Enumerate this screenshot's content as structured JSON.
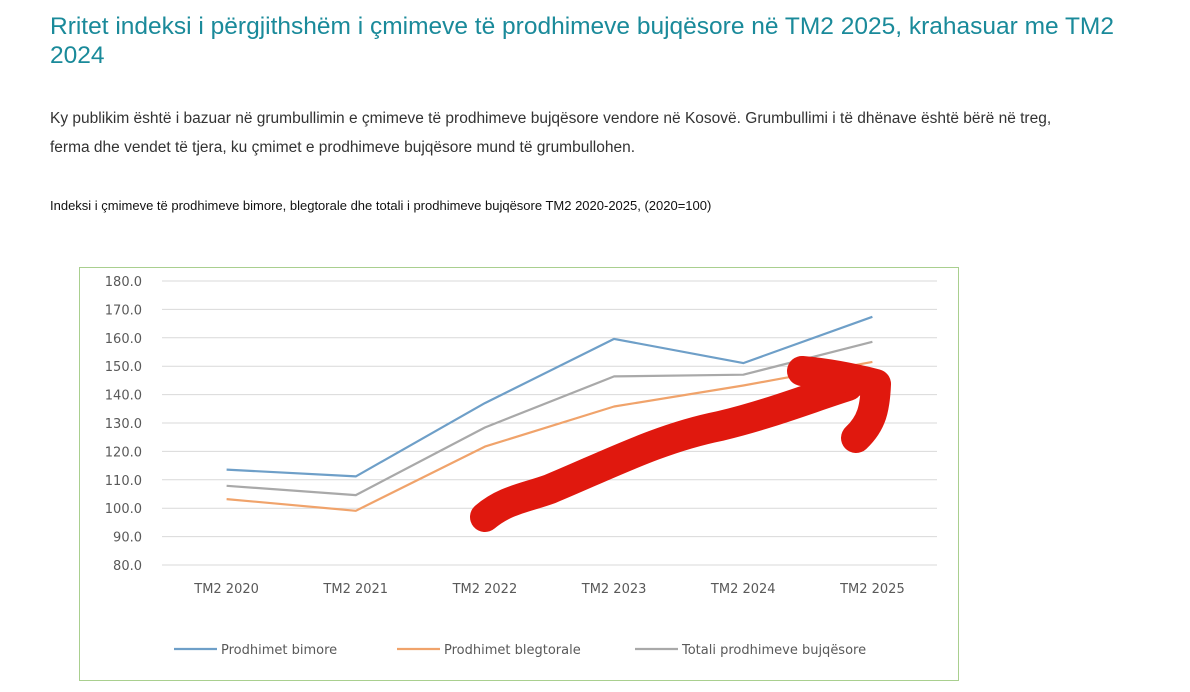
{
  "page": {
    "title": "Rritet indeksi i përgjithshëm i çmimeve të prodhimeve bujqësore në TM2 2025, krahasuar me TM2 2024",
    "intro_line1": "Ky publikim është i bazuar në grumbullimin e çmimeve të prodhimeve bujqësore vendore në Kosovë. Grumbullimi i të dhënave është bërë në treg,",
    "intro_line2": "ferma dhe vendet të tjera, ku çmimet e prodhimeve bujqësore mund të grumbullohen.",
    "chart_caption": "Indeksi i çmimeve të prodhimeve bimore, blegtorale dhe totali i prodhimeve bujqësore TM2 2020-2025, (2020=100)"
  },
  "chart_data": {
    "type": "line",
    "title": "",
    "xlabel": "",
    "ylabel": "",
    "categories": [
      "TM2 2020",
      "TM2 2021",
      "TM2  2022",
      "TM2 2023",
      "TM2 2024",
      "TM2 2025"
    ],
    "ylim": [
      80,
      180
    ],
    "y_ticks": [
      "180.0",
      "170.0",
      "160.0",
      "150.0",
      "140.0",
      "130.0",
      "120.0",
      "110.0",
      "100.0",
      "90.0",
      "80.0"
    ],
    "grid": true,
    "legend_position": "bottom",
    "series": [
      {
        "name": "Prodhimet bimore",
        "color": "#6e9fc8",
        "values": [
          113.6,
          111.2,
          137.0,
          159.6,
          151.1,
          167.4
        ]
      },
      {
        "name": "Prodhimet blegtorale",
        "color": "#f0a36b",
        "values": [
          103.2,
          99.1,
          121.7,
          135.8,
          143.2,
          151.5
        ]
      },
      {
        "name": "Totali prodhimeve bujqësore",
        "color": "#a9a9a9",
        "values": [
          107.9,
          104.6,
          128.4,
          146.4,
          147.0,
          158.6
        ]
      }
    ],
    "annotation": {
      "type": "arrow",
      "color": "#e0180e",
      "direction": "up-right"
    }
  }
}
